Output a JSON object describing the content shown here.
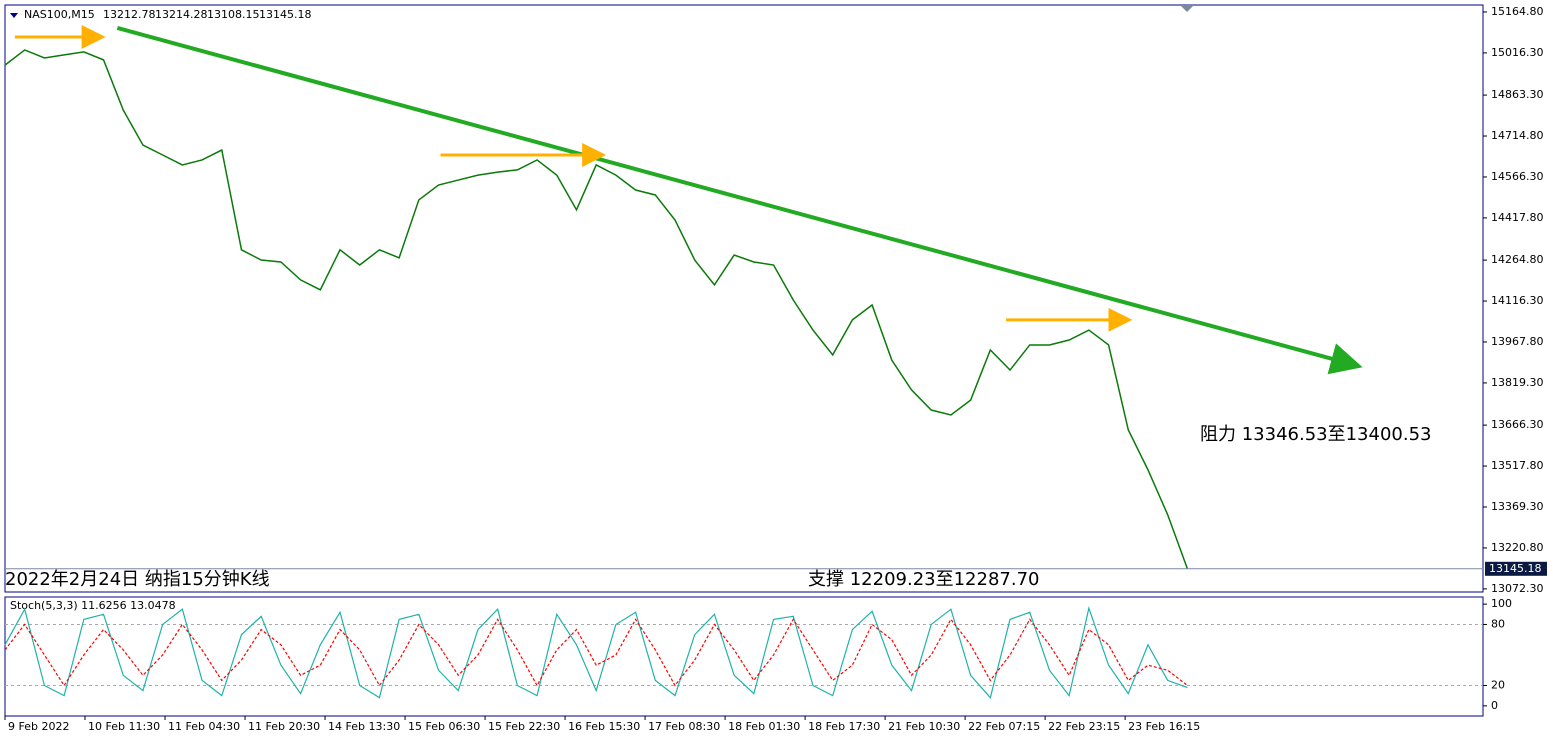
{
  "chart_data": {
    "type": "line",
    "symbol": "NAS100,M15",
    "ohlc": [
      13212.78,
      13214.28,
      13108.15,
      13145.18
    ],
    "xlim": [
      0,
      75
    ],
    "ylim": [
      13061,
      15190
    ],
    "yticks": [
      {
        "value": 15164.8,
        "label": "15164.80"
      },
      {
        "value": 15016.3,
        "label": "15016.30"
      },
      {
        "value": 14863.3,
        "label": "14863.30"
      },
      {
        "value": 14714.8,
        "label": "14714.80"
      },
      {
        "value": 14566.3,
        "label": "14566.30"
      },
      {
        "value": 14417.8,
        "label": "14417.80"
      },
      {
        "value": 14264.8,
        "label": "14264.80"
      },
      {
        "value": 14116.3,
        "label": "14116.30"
      },
      {
        "value": 13967.8,
        "label": "13967.80"
      },
      {
        "value": 13819.3,
        "label": "13819.30"
      },
      {
        "value": 13666.3,
        "label": "13666.30"
      },
      {
        "value": 13517.8,
        "label": "13517.80"
      },
      {
        "value": 13369.3,
        "label": "13369.30"
      },
      {
        "value": 13220.8,
        "label": "13220.80"
      },
      {
        "value": 13072.3,
        "label": "13072.30"
      }
    ],
    "xticks": [
      {
        "value": 0,
        "label": "9 Feb 2022"
      },
      {
        "value": 4.06,
        "label": "10 Feb 11:30"
      },
      {
        "value": 8.12,
        "label": "11 Feb 04:30"
      },
      {
        "value": 12.18,
        "label": "11 Feb 20:30"
      },
      {
        "value": 16.24,
        "label": "14 Feb 13:30"
      },
      {
        "value": 20.3,
        "label": "15 Feb 06:30"
      },
      {
        "value": 24.36,
        "label": "15 Feb 22:30"
      },
      {
        "value": 28.42,
        "label": "16 Feb 15:30"
      },
      {
        "value": 32.48,
        "label": "17 Feb 08:30"
      },
      {
        "value": 36.54,
        "label": "18 Feb 01:30"
      },
      {
        "value": 40.6,
        "label": "18 Feb 17:30"
      },
      {
        "value": 44.66,
        "label": "21 Feb 10:30"
      },
      {
        "value": 48.72,
        "label": "22 Feb 07:15"
      },
      {
        "value": 52.78,
        "label": "22 Feb 23:15"
      },
      {
        "value": 56.84,
        "label": "23 Feb 16:15"
      }
    ],
    "series": [
      {
        "color": "#0a7a0a",
        "values": [
          14972,
          15027,
          14998,
          15009,
          15020,
          14991,
          14809,
          14682,
          14646,
          14610,
          14628,
          14664,
          14302,
          14265,
          14258,
          14193,
          14157,
          14302,
          14247,
          14302,
          14273,
          14483,
          14537,
          14555,
          14573,
          14584,
          14592,
          14628,
          14573,
          14447,
          14610,
          14573,
          14519,
          14501,
          14410,
          14265,
          14175,
          14283,
          14258,
          14247,
          14120,
          14011,
          13921,
          14048,
          14102,
          13902,
          13794,
          13721,
          13703,
          13757,
          13939,
          13866,
          13957,
          13957,
          13975,
          14011,
          13957,
          13649,
          13504,
          13341,
          13145.18
        ]
      }
    ],
    "trendline": {
      "color": "#22aa22",
      "x": [
        5.7,
        68.5
      ],
      "values": [
        15107,
        13884
      ]
    },
    "levels": [
      {
        "color": "#ffb000",
        "x": [
          0.5,
          4.8
        ],
        "value": 15074
      },
      {
        "color": "#ffb000",
        "x": [
          22.1,
          30.2
        ],
        "value": 14646
      },
      {
        "color": "#ffb000",
        "x": [
          50.8,
          56.9
        ],
        "value": 14048
      }
    ],
    "annotations": [
      "2022年2月24日 纳指15分钟K线",
      "支撑 12209.23至12287.70",
      "阻力 13346.53至13400.53"
    ],
    "stoch": {
      "title": "Stoch(5,3,3) 11.6256 13.0478",
      "ylim": [
        -10,
        107
      ],
      "yticks": [
        100,
        80,
        20,
        0
      ],
      "levels": [
        80,
        20
      ],
      "series": [
        {
          "color": "#20b2aa",
          "values": [
            60,
            95,
            20,
            10,
            85,
            90,
            30,
            15,
            80,
            95,
            25,
            10,
            70,
            88,
            40,
            12,
            60,
            92,
            20,
            8,
            85,
            90,
            35,
            15,
            75,
            95,
            20,
            10,
            90,
            60,
            15,
            80,
            92,
            25,
            10,
            70,
            90,
            30,
            12,
            85,
            88,
            20,
            10,
            75,
            93,
            40,
            15,
            80,
            95,
            30,
            8,
            85,
            92,
            35,
            10,
            96,
            40,
            12,
            60,
            25,
            18
          ]
        },
        {
          "color": "#ff0000",
          "values": [
            55,
            80,
            50,
            20,
            50,
            75,
            55,
            30,
            50,
            80,
            55,
            25,
            45,
            75,
            60,
            30,
            40,
            75,
            55,
            20,
            45,
            80,
            60,
            30,
            50,
            85,
            55,
            20,
            55,
            75,
            40,
            50,
            85,
            55,
            20,
            45,
            80,
            55,
            25,
            50,
            85,
            55,
            25,
            40,
            80,
            65,
            30,
            50,
            85,
            60,
            25,
            50,
            85,
            60,
            30,
            75,
            60,
            25,
            40,
            35,
            20
          ]
        }
      ]
    }
  }
}
